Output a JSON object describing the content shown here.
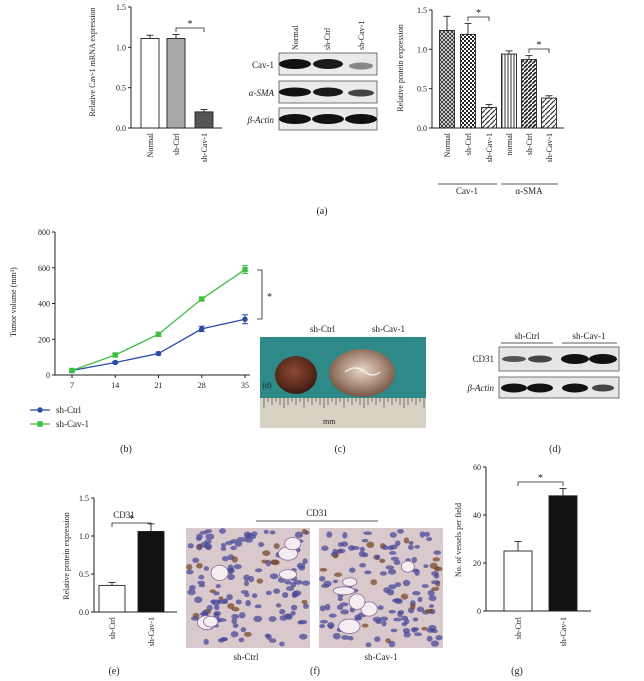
{
  "panel_labels": [
    "(a)",
    "(b)",
    "(c)",
    "(d)",
    "(e)",
    "(f)",
    "(g)"
  ],
  "significance_marker": "*",
  "colors": {
    "green": "#3fbf3f",
    "blue": "#2b4aa8",
    "black": "#111111",
    "dark_gray": "#555555",
    "light_gray": "#a8a8a8",
    "tissue_bg": "#2e8a88",
    "ihc_bg": "#d9c9cc"
  },
  "blot_a": {
    "lanes": [
      "Normal",
      "sh-Ctrl",
      "sh-Cav-1"
    ],
    "rows": [
      "Cav-1",
      "α-SMA",
      "β-Actin"
    ]
  },
  "blot_d": {
    "groups": [
      "sh-Ctrl",
      "sh-Cav-1"
    ],
    "rows": [
      "CD31",
      "β-Actin"
    ]
  },
  "photo_c": {
    "labels": [
      "sh-Ctrl",
      "sh-Cav-1"
    ],
    "ruler_text": "mm"
  },
  "ihc_f": {
    "title": "CD31",
    "labels": [
      "sh-Ctrl",
      "sh-Cav-1"
    ]
  },
  "chart_data": [
    {
      "id": "a1",
      "type": "bar",
      "ylabel": "Relative Cav-1 mRNA expression",
      "ylim": [
        0,
        1.5
      ],
      "yticks": [
        "0.0",
        "0.5",
        "1.0",
        "1.5"
      ],
      "categories": [
        "Normal",
        "sh-Ctrl",
        "sh-Cav-1"
      ],
      "values": [
        1.11,
        1.11,
        0.2
      ],
      "errors": [
        0.04,
        0.05,
        0.03
      ],
      "fills": [
        "#ffffff",
        "#a8a8a8",
        "#555555"
      ]
    },
    {
      "id": "a2",
      "type": "bar",
      "ylabel": "Relative protein expression",
      "ylim": [
        0,
        1.5
      ],
      "yticks": [
        "0.0",
        "0.5",
        "1.0",
        "1.5"
      ],
      "categories": [
        "Normal",
        "sh-Ctrl",
        "sh-Cav-1",
        "normal",
        "sh-Ctrl",
        "sh-Cav-1"
      ],
      "groups": [
        "Cav-1",
        "α-SMA"
      ],
      "values": [
        1.24,
        1.19,
        0.26,
        0.94,
        0.87,
        0.38
      ],
      "errors": [
        0.18,
        0.14,
        0.04,
        0.04,
        0.05,
        0.03
      ],
      "patterns": [
        "hatch-dense",
        "checker",
        "diag",
        "vlines",
        "diag-dark",
        "diag"
      ]
    },
    {
      "id": "b",
      "type": "line",
      "ylabel": "Tumor volume (mm³)",
      "ylim": [
        0,
        800
      ],
      "yticks": [
        "0",
        "200",
        "400",
        "600",
        "800"
      ],
      "x": [
        7,
        14,
        21,
        28,
        35
      ],
      "xticks": [
        "7",
        "14",
        "21",
        "28",
        "35"
      ],
      "x_annotation": "(d)",
      "series": [
        {
          "name": "sh-Ctrl",
          "values": [
            25,
            70,
            120,
            258,
            312
          ],
          "errors": [
            3,
            6,
            8,
            15,
            25
          ],
          "color": "#2b4aa8",
          "marker": "circle"
        },
        {
          "name": "sh-Cav-1",
          "values": [
            25,
            112,
            228,
            425,
            590
          ],
          "errors": [
            3,
            8,
            12,
            10,
            22
          ],
          "color": "#3fbf3f",
          "marker": "square"
        }
      ]
    },
    {
      "id": "e",
      "type": "bar",
      "title": "CD31",
      "ylabel": "Relative protein expression",
      "ylim": [
        0,
        1.5
      ],
      "yticks": [
        "0.0",
        "0.5",
        "1.0",
        "1.5"
      ],
      "categories": [
        "sh-Ctrl",
        "sh-Cav-1"
      ],
      "values": [
        0.35,
        1.06
      ],
      "errors": [
        0.04,
        0.1
      ],
      "fills": [
        "#ffffff",
        "#111111"
      ]
    },
    {
      "id": "g",
      "type": "bar",
      "ylabel": "No. of vessels per field",
      "ylim": [
        0,
        60
      ],
      "yticks": [
        "0",
        "20",
        "40",
        "60"
      ],
      "categories": [
        "sh-Ctrl",
        "sh-Cav-1"
      ],
      "values": [
        25,
        48
      ],
      "errors": [
        4,
        3
      ],
      "fills": [
        "#ffffff",
        "#111111"
      ]
    }
  ]
}
